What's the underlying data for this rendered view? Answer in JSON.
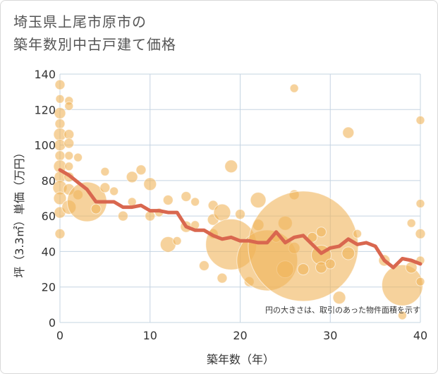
{
  "title_line1": "埼玉県上尾市原市の",
  "title_line2": "築年数別中古戸建て価格",
  "chart_data": {
    "type": "scatter",
    "xlabel": "築年数（年）",
    "ylabel": "坪（3.3㎡）単価（万円）",
    "xlim": [
      0,
      40
    ],
    "ylim": [
      0,
      140
    ],
    "xticks": [
      0,
      10,
      20,
      30,
      40
    ],
    "yticks": [
      0,
      20,
      40,
      60,
      80,
      100,
      120,
      140
    ],
    "grid": true,
    "note": "円の大きさは、取引のあった物件面積を示す",
    "colors": {
      "bubble": "#f0b45a",
      "line": "#d9674f",
      "grid": "#c5d4e2"
    },
    "bubbles": [
      {
        "x": 0,
        "y": 134,
        "s": 7
      },
      {
        "x": 0,
        "y": 126,
        "s": 6
      },
      {
        "x": 0,
        "y": 118,
        "s": 8
      },
      {
        "x": 0,
        "y": 112,
        "s": 7
      },
      {
        "x": 0,
        "y": 106,
        "s": 9
      },
      {
        "x": 0,
        "y": 100,
        "s": 8
      },
      {
        "x": 0,
        "y": 94,
        "s": 7
      },
      {
        "x": 0,
        "y": 88,
        "s": 9
      },
      {
        "x": 0,
        "y": 82,
        "s": 8
      },
      {
        "x": 0,
        "y": 76,
        "s": 10
      },
      {
        "x": 0,
        "y": 70,
        "s": 9
      },
      {
        "x": 0,
        "y": 62,
        "s": 8
      },
      {
        "x": 0,
        "y": 50,
        "s": 7
      },
      {
        "x": 1,
        "y": 125,
        "s": 6
      },
      {
        "x": 1,
        "y": 122,
        "s": 6
      },
      {
        "x": 1,
        "y": 106,
        "s": 7
      },
      {
        "x": 1,
        "y": 101,
        "s": 7
      },
      {
        "x": 1,
        "y": 94,
        "s": 6
      },
      {
        "x": 1,
        "y": 88,
        "s": 6
      },
      {
        "x": 1,
        "y": 82,
        "s": 7
      },
      {
        "x": 1,
        "y": 75,
        "s": 8
      },
      {
        "x": 1,
        "y": 65,
        "s": 10
      },
      {
        "x": 2,
        "y": 93,
        "s": 6
      },
      {
        "x": 2,
        "y": 72,
        "s": 7
      },
      {
        "x": 3,
        "y": 68,
        "s": 28
      },
      {
        "x": 4,
        "y": 64,
        "s": 7
      },
      {
        "x": 5,
        "y": 85,
        "s": 6
      },
      {
        "x": 5,
        "y": 76,
        "s": 7
      },
      {
        "x": 6,
        "y": 74,
        "s": 6
      },
      {
        "x": 7,
        "y": 60,
        "s": 7
      },
      {
        "x": 8,
        "y": 82,
        "s": 8
      },
      {
        "x": 8,
        "y": 68,
        "s": 6
      },
      {
        "x": 9,
        "y": 86,
        "s": 7
      },
      {
        "x": 10,
        "y": 78,
        "s": 9
      },
      {
        "x": 10,
        "y": 60,
        "s": 7
      },
      {
        "x": 11,
        "y": 62,
        "s": 6
      },
      {
        "x": 12,
        "y": 69,
        "s": 7
      },
      {
        "x": 12,
        "y": 44,
        "s": 11
      },
      {
        "x": 13,
        "y": 46,
        "s": 6
      },
      {
        "x": 14,
        "y": 71,
        "s": 7
      },
      {
        "x": 14,
        "y": 54,
        "s": 8
      },
      {
        "x": 15,
        "y": 68,
        "s": 6
      },
      {
        "x": 15,
        "y": 55,
        "s": 6
      },
      {
        "x": 16,
        "y": 32,
        "s": 7
      },
      {
        "x": 17,
        "y": 66,
        "s": 7
      },
      {
        "x": 17,
        "y": 58,
        "s": 8
      },
      {
        "x": 17,
        "y": 50,
        "s": 7
      },
      {
        "x": 18,
        "y": 62,
        "s": 12
      },
      {
        "x": 18,
        "y": 25,
        "s": 7
      },
      {
        "x": 19,
        "y": 88,
        "s": 9
      },
      {
        "x": 19,
        "y": 44,
        "s": 36
      },
      {
        "x": 20,
        "y": 61,
        "s": 7
      },
      {
        "x": 21,
        "y": 23,
        "s": 7
      },
      {
        "x": 22,
        "y": 69,
        "s": 11
      },
      {
        "x": 22,
        "y": 55,
        "s": 8
      },
      {
        "x": 23,
        "y": 35,
        "s": 43
      },
      {
        "x": 24,
        "y": 48,
        "s": 7
      },
      {
        "x": 25,
        "y": 56,
        "s": 10
      },
      {
        "x": 25,
        "y": 30,
        "s": 12
      },
      {
        "x": 26,
        "y": 132,
        "s": 6
      },
      {
        "x": 26,
        "y": 72,
        "s": 7
      },
      {
        "x": 26,
        "y": 42,
        "s": 8
      },
      {
        "x": 27,
        "y": 43,
        "s": 78
      },
      {
        "x": 27,
        "y": 30,
        "s": 8
      },
      {
        "x": 28,
        "y": 48,
        "s": 7
      },
      {
        "x": 29,
        "y": 51,
        "s": 7
      },
      {
        "x": 29,
        "y": 38,
        "s": 14
      },
      {
        "x": 29,
        "y": 31,
        "s": 8
      },
      {
        "x": 30,
        "y": 33,
        "s": 7
      },
      {
        "x": 31,
        "y": 14,
        "s": 9
      },
      {
        "x": 32,
        "y": 107,
        "s": 8
      },
      {
        "x": 32,
        "y": 39,
        "s": 9
      },
      {
        "x": 33,
        "y": 50,
        "s": 6
      },
      {
        "x": 36,
        "y": 35,
        "s": 8
      },
      {
        "x": 38,
        "y": 21,
        "s": 29
      },
      {
        "x": 38,
        "y": 4,
        "s": 6
      },
      {
        "x": 39,
        "y": 56,
        "s": 6
      },
      {
        "x": 39,
        "y": 31,
        "s": 8
      },
      {
        "x": 40,
        "y": 114,
        "s": 6
      },
      {
        "x": 40,
        "y": 67,
        "s": 6
      },
      {
        "x": 40,
        "y": 50,
        "s": 7
      },
      {
        "x": 40,
        "y": 35,
        "s": 6
      },
      {
        "x": 40,
        "y": 23,
        "s": 6
      }
    ],
    "trend": {
      "x": [
        0,
        1,
        2,
        3,
        4,
        5,
        6,
        7,
        8,
        9,
        10,
        11,
        12,
        13,
        14,
        15,
        16,
        17,
        18,
        19,
        20,
        21,
        22,
        23,
        24,
        25,
        26,
        27,
        28,
        29,
        30,
        31,
        32,
        33,
        34,
        35,
        36,
        37,
        38,
        39,
        40
      ],
      "y": [
        86,
        83,
        79,
        75,
        68,
        68,
        68,
        65,
        65,
        66,
        63,
        63,
        62,
        62,
        54,
        52,
        52,
        49,
        47,
        48,
        46,
        46,
        45,
        45,
        51,
        45,
        48,
        49,
        44,
        39,
        42,
        43,
        47,
        44,
        45,
        43,
        35,
        31,
        36,
        35,
        33
      ]
    }
  }
}
